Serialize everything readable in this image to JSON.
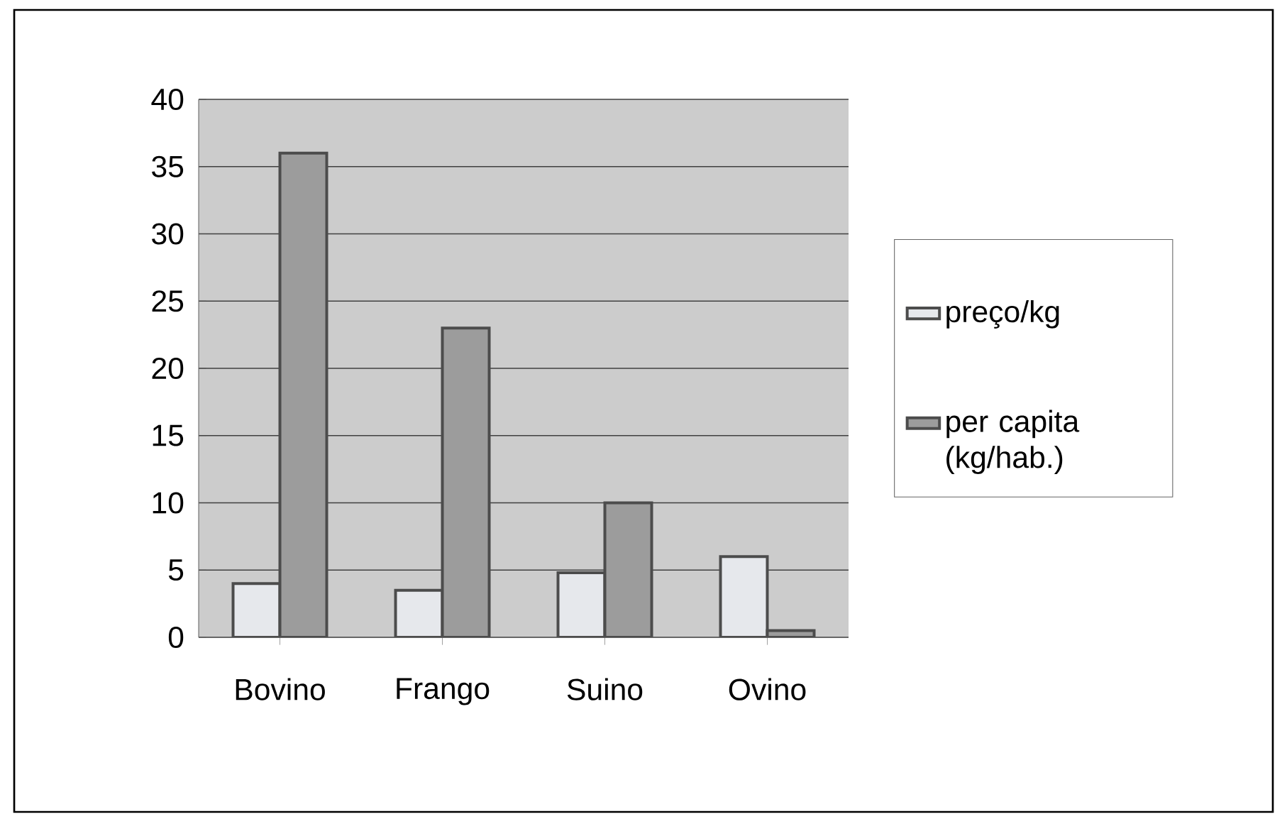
{
  "chart_data": {
    "type": "bar",
    "categories": [
      "Bovino",
      "Frango",
      "Suino",
      "Ovino"
    ],
    "series": [
      {
        "name": "preço/kg",
        "color": "#e6e8ec",
        "values": [
          4,
          3.5,
          4.8,
          6
        ]
      },
      {
        "name": "per capita (kg/hab.)",
        "color": "#9c9c9c",
        "values": [
          36,
          23,
          10,
          0.5
        ]
      }
    ],
    "ylim": [
      0,
      40
    ],
    "yticks": [
      0,
      5,
      10,
      15,
      20,
      25,
      30,
      35,
      40
    ],
    "grid": "y",
    "legend": "right"
  }
}
